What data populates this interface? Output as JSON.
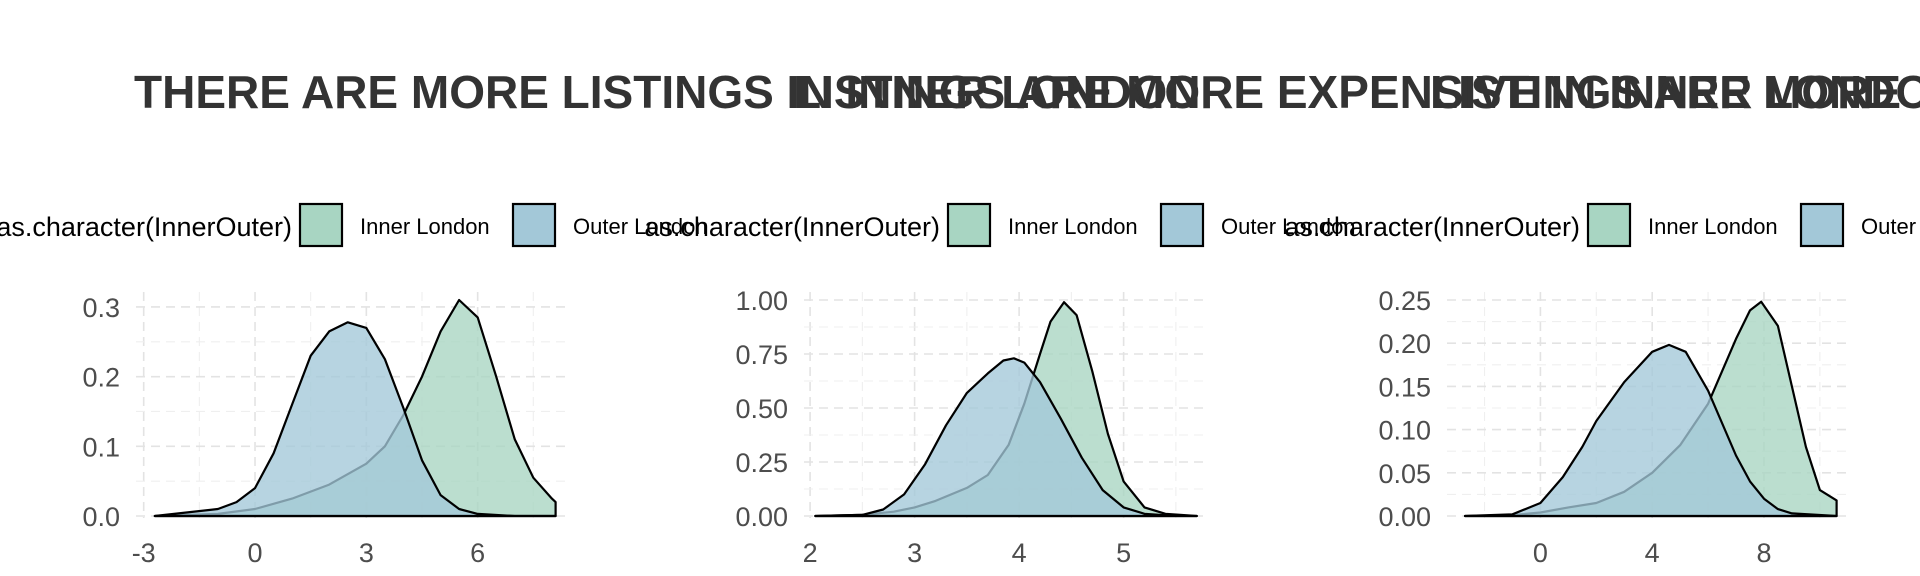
{
  "chart_data": [
    {
      "type": "area",
      "title": "THERE ARE MORE LISTINGS IN INNER LONDON",
      "legend": {
        "title": "as.character(InnerOuter)",
        "position": "top",
        "entries": [
          {
            "label": "Inner London",
            "color": "#a8d5c2"
          },
          {
            "label": "Outer London",
            "color": "#a3c8d8"
          }
        ]
      },
      "xlim": [
        -3.1,
        8.3
      ],
      "ylim": [
        0,
        0.31
      ],
      "xticks": [
        -3,
        0,
        3,
        6
      ],
      "xtick_labels": [
        "-3",
        "0",
        "3",
        "6"
      ],
      "yticks": [
        0,
        0.1,
        0.2,
        0.3
      ],
      "ytick_labels": [
        "0.0",
        "0.1",
        "0.2",
        "0.3"
      ],
      "grid": true,
      "series": [
        {
          "name": "Inner London",
          "color": "#a8d5c2",
          "x": [
            -2.7,
            -1.0,
            0.0,
            1.0,
            2.0,
            3.0,
            3.5,
            4.0,
            4.5,
            5.0,
            5.5,
            6.0,
            6.5,
            7.0,
            7.5,
            8.0,
            8.1
          ],
          "y": [
            0.0,
            0.003,
            0.01,
            0.025,
            0.045,
            0.075,
            0.1,
            0.145,
            0.2,
            0.265,
            0.31,
            0.285,
            0.2,
            0.11,
            0.055,
            0.025,
            0.02
          ]
        },
        {
          "name": "Outer London",
          "color": "#a3c8d8",
          "x": [
            -2.7,
            -1.0,
            -0.5,
            0.0,
            0.5,
            1.0,
            1.5,
            2.0,
            2.5,
            3.0,
            3.5,
            4.0,
            4.5,
            5.0,
            5.5,
            6.0,
            7.0,
            8.1
          ],
          "y": [
            0.0,
            0.01,
            0.02,
            0.04,
            0.09,
            0.16,
            0.23,
            0.265,
            0.278,
            0.27,
            0.225,
            0.155,
            0.08,
            0.03,
            0.01,
            0.003,
            0.0,
            0.0
          ]
        }
      ]
    },
    {
      "type": "area",
      "title": "LISTINGS ARE MORE EXPENSIVE IN INNER LONDON",
      "legend": {
        "title": "as.character(InnerOuter)",
        "position": "top",
        "entries": [
          {
            "label": "Inner London",
            "color": "#a8d5c2"
          },
          {
            "label": "Outer London",
            "color": "#a3c8d8"
          }
        ]
      },
      "xlim": [
        1.98,
        5.75
      ],
      "ylim": [
        0,
        1.0
      ],
      "xticks": [
        2,
        3,
        4,
        5
      ],
      "xtick_labels": [
        "2",
        "3",
        "4",
        "5"
      ],
      "yticks": [
        0,
        0.25,
        0.5,
        0.75,
        1.0
      ],
      "ytick_labels": [
        "0.00",
        "0.25",
        "0.50",
        "0.75",
        "1.00"
      ],
      "grid": true,
      "series": [
        {
          "name": "Inner London",
          "color": "#a8d5c2",
          "x": [
            2.05,
            2.5,
            2.8,
            3.0,
            3.2,
            3.5,
            3.7,
            3.9,
            4.05,
            4.2,
            4.3,
            4.43,
            4.55,
            4.7,
            4.85,
            5.0,
            5.2,
            5.4,
            5.7
          ],
          "y": [
            0.0,
            0.005,
            0.02,
            0.04,
            0.07,
            0.13,
            0.19,
            0.33,
            0.52,
            0.75,
            0.9,
            0.99,
            0.93,
            0.67,
            0.38,
            0.16,
            0.04,
            0.01,
            0.0
          ]
        },
        {
          "name": "Outer London",
          "color": "#a3c8d8",
          "x": [
            2.05,
            2.5,
            2.7,
            2.9,
            3.1,
            3.3,
            3.5,
            3.7,
            3.85,
            3.95,
            4.05,
            4.2,
            4.4,
            4.6,
            4.8,
            5.0,
            5.2,
            5.5,
            5.7
          ],
          "y": [
            0.0,
            0.005,
            0.03,
            0.1,
            0.24,
            0.42,
            0.57,
            0.66,
            0.72,
            0.73,
            0.71,
            0.62,
            0.45,
            0.27,
            0.12,
            0.04,
            0.01,
            0.0,
            0.0
          ]
        }
      ]
    },
    {
      "type": "area",
      "title": "LISTINGS ARE MORE",
      "legend": {
        "title": "as.character(InnerOuter)",
        "position": "top",
        "entries": [
          {
            "label": "Inner London",
            "color": "#a8d5c2"
          },
          {
            "label": "Outer London",
            "color": "#a3c8d8"
          }
        ]
      },
      "xlim": [
        -3.2,
        10.9
      ],
      "ylim": [
        0,
        0.25
      ],
      "xticks": [
        0,
        4,
        8
      ],
      "xtick_labels": [
        "0",
        "4",
        "8"
      ],
      "yticks": [
        0,
        0.05,
        0.1,
        0.15,
        0.2,
        0.25
      ],
      "ytick_labels": [
        "0.00",
        "0.05",
        "0.10",
        "0.15",
        "0.20",
        "0.25"
      ],
      "grid": true,
      "series": [
        {
          "name": "Inner London",
          "color": "#a8d5c2",
          "x": [
            -2.7,
            -1.0,
            0.0,
            1.0,
            2.0,
            3.0,
            4.0,
            5.0,
            6.0,
            7.0,
            7.5,
            7.9,
            8.5,
            9.0,
            9.5,
            10.0,
            10.6
          ],
          "y": [
            0.0,
            0.001,
            0.004,
            0.01,
            0.015,
            0.028,
            0.05,
            0.082,
            0.13,
            0.205,
            0.238,
            0.248,
            0.22,
            0.15,
            0.08,
            0.03,
            0.018
          ]
        },
        {
          "name": "Outer London",
          "color": "#a3c8d8",
          "x": [
            -2.7,
            -1.0,
            0.0,
            0.8,
            1.5,
            2.0,
            3.0,
            4.0,
            4.6,
            5.2,
            6.0,
            7.0,
            7.5,
            8.0,
            8.5,
            9.0,
            10.6
          ],
          "y": [
            0.0,
            0.002,
            0.015,
            0.045,
            0.08,
            0.11,
            0.155,
            0.19,
            0.198,
            0.19,
            0.145,
            0.07,
            0.04,
            0.02,
            0.008,
            0.003,
            0.0
          ]
        }
      ]
    }
  ]
}
